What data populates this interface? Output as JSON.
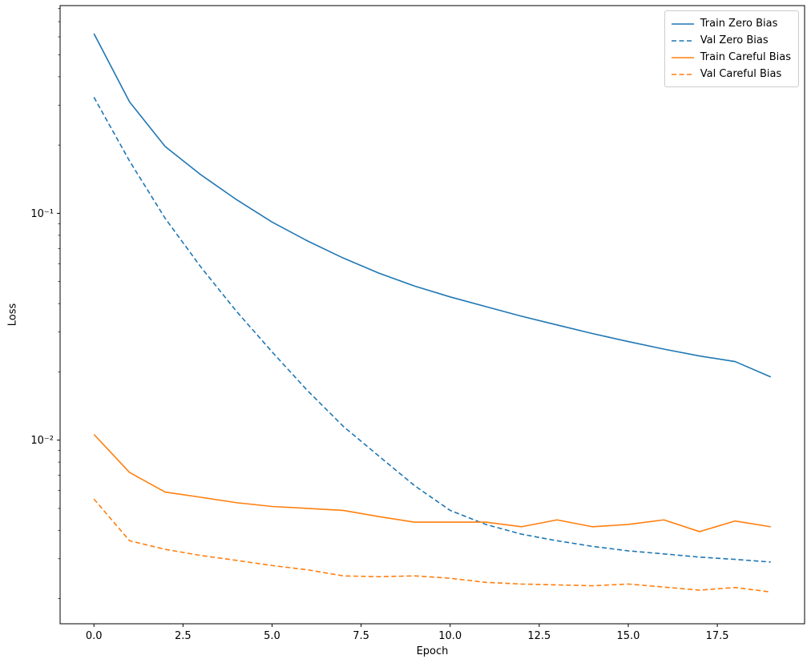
{
  "chart_data": {
    "type": "line",
    "title": "",
    "xlabel": "Epoch",
    "ylabel": "Loss",
    "yscale": "log",
    "grid": false,
    "legend_position": "upper right",
    "xlim": [
      -0.95,
      19.95
    ],
    "ylim": [
      0.00155,
      0.824
    ],
    "x": [
      0,
      1,
      2,
      3,
      4,
      5,
      6,
      7,
      8,
      9,
      10,
      11,
      12,
      13,
      14,
      15,
      16,
      17,
      18,
      19
    ],
    "xticks": {
      "values": [
        0,
        2.5,
        5,
        7.5,
        10,
        12.5,
        15,
        17.5
      ],
      "labels": [
        "0.0",
        "2.5",
        "5.0",
        "7.5",
        "10.0",
        "12.5",
        "15.0",
        "17.5"
      ]
    },
    "yticks": {
      "values": [
        0.01,
        0.1
      ],
      "labels": [
        "10⁻²",
        "10⁻¹"
      ]
    },
    "series": [
      {
        "name": "Train Zero Bias",
        "color": "#1f77b4",
        "dash": "solid",
        "values": [
          0.62,
          0.31,
          0.197,
          0.148,
          0.115,
          0.0915,
          0.0755,
          0.0635,
          0.0545,
          0.0478,
          0.0428,
          0.0388,
          0.0352,
          0.0322,
          0.0295,
          0.0272,
          0.0252,
          0.0235,
          0.0222,
          0.019
        ]
      },
      {
        "name": "Val Zero Bias",
        "color": "#1f77b4",
        "dash": "dashed",
        "values": [
          0.325,
          0.17,
          0.095,
          0.058,
          0.037,
          0.0245,
          0.0165,
          0.0115,
          0.0085,
          0.0063,
          0.0049,
          0.00425,
          0.00385,
          0.0036,
          0.0034,
          0.00325,
          0.00315,
          0.00305,
          0.00298,
          0.0029
        ]
      },
      {
        "name": "Train Careful Bias",
        "color": "#ff7f0e",
        "dash": "solid",
        "values": [
          0.0106,
          0.0072,
          0.0059,
          0.0056,
          0.0053,
          0.0051,
          0.005,
          0.0049,
          0.0046,
          0.00435,
          0.00435,
          0.00435,
          0.00415,
          0.00445,
          0.00415,
          0.00425,
          0.00445,
          0.00395,
          0.0044,
          0.00415
        ]
      },
      {
        "name": "Val Careful Bias",
        "color": "#ff7f0e",
        "dash": "dashed",
        "values": [
          0.0055,
          0.0036,
          0.0033,
          0.0031,
          0.00295,
          0.0028,
          0.00268,
          0.00252,
          0.0025,
          0.00252,
          0.00246,
          0.00236,
          0.00232,
          0.0023,
          0.00228,
          0.00232,
          0.00225,
          0.00218,
          0.00224,
          0.00214
        ]
      }
    ]
  }
}
